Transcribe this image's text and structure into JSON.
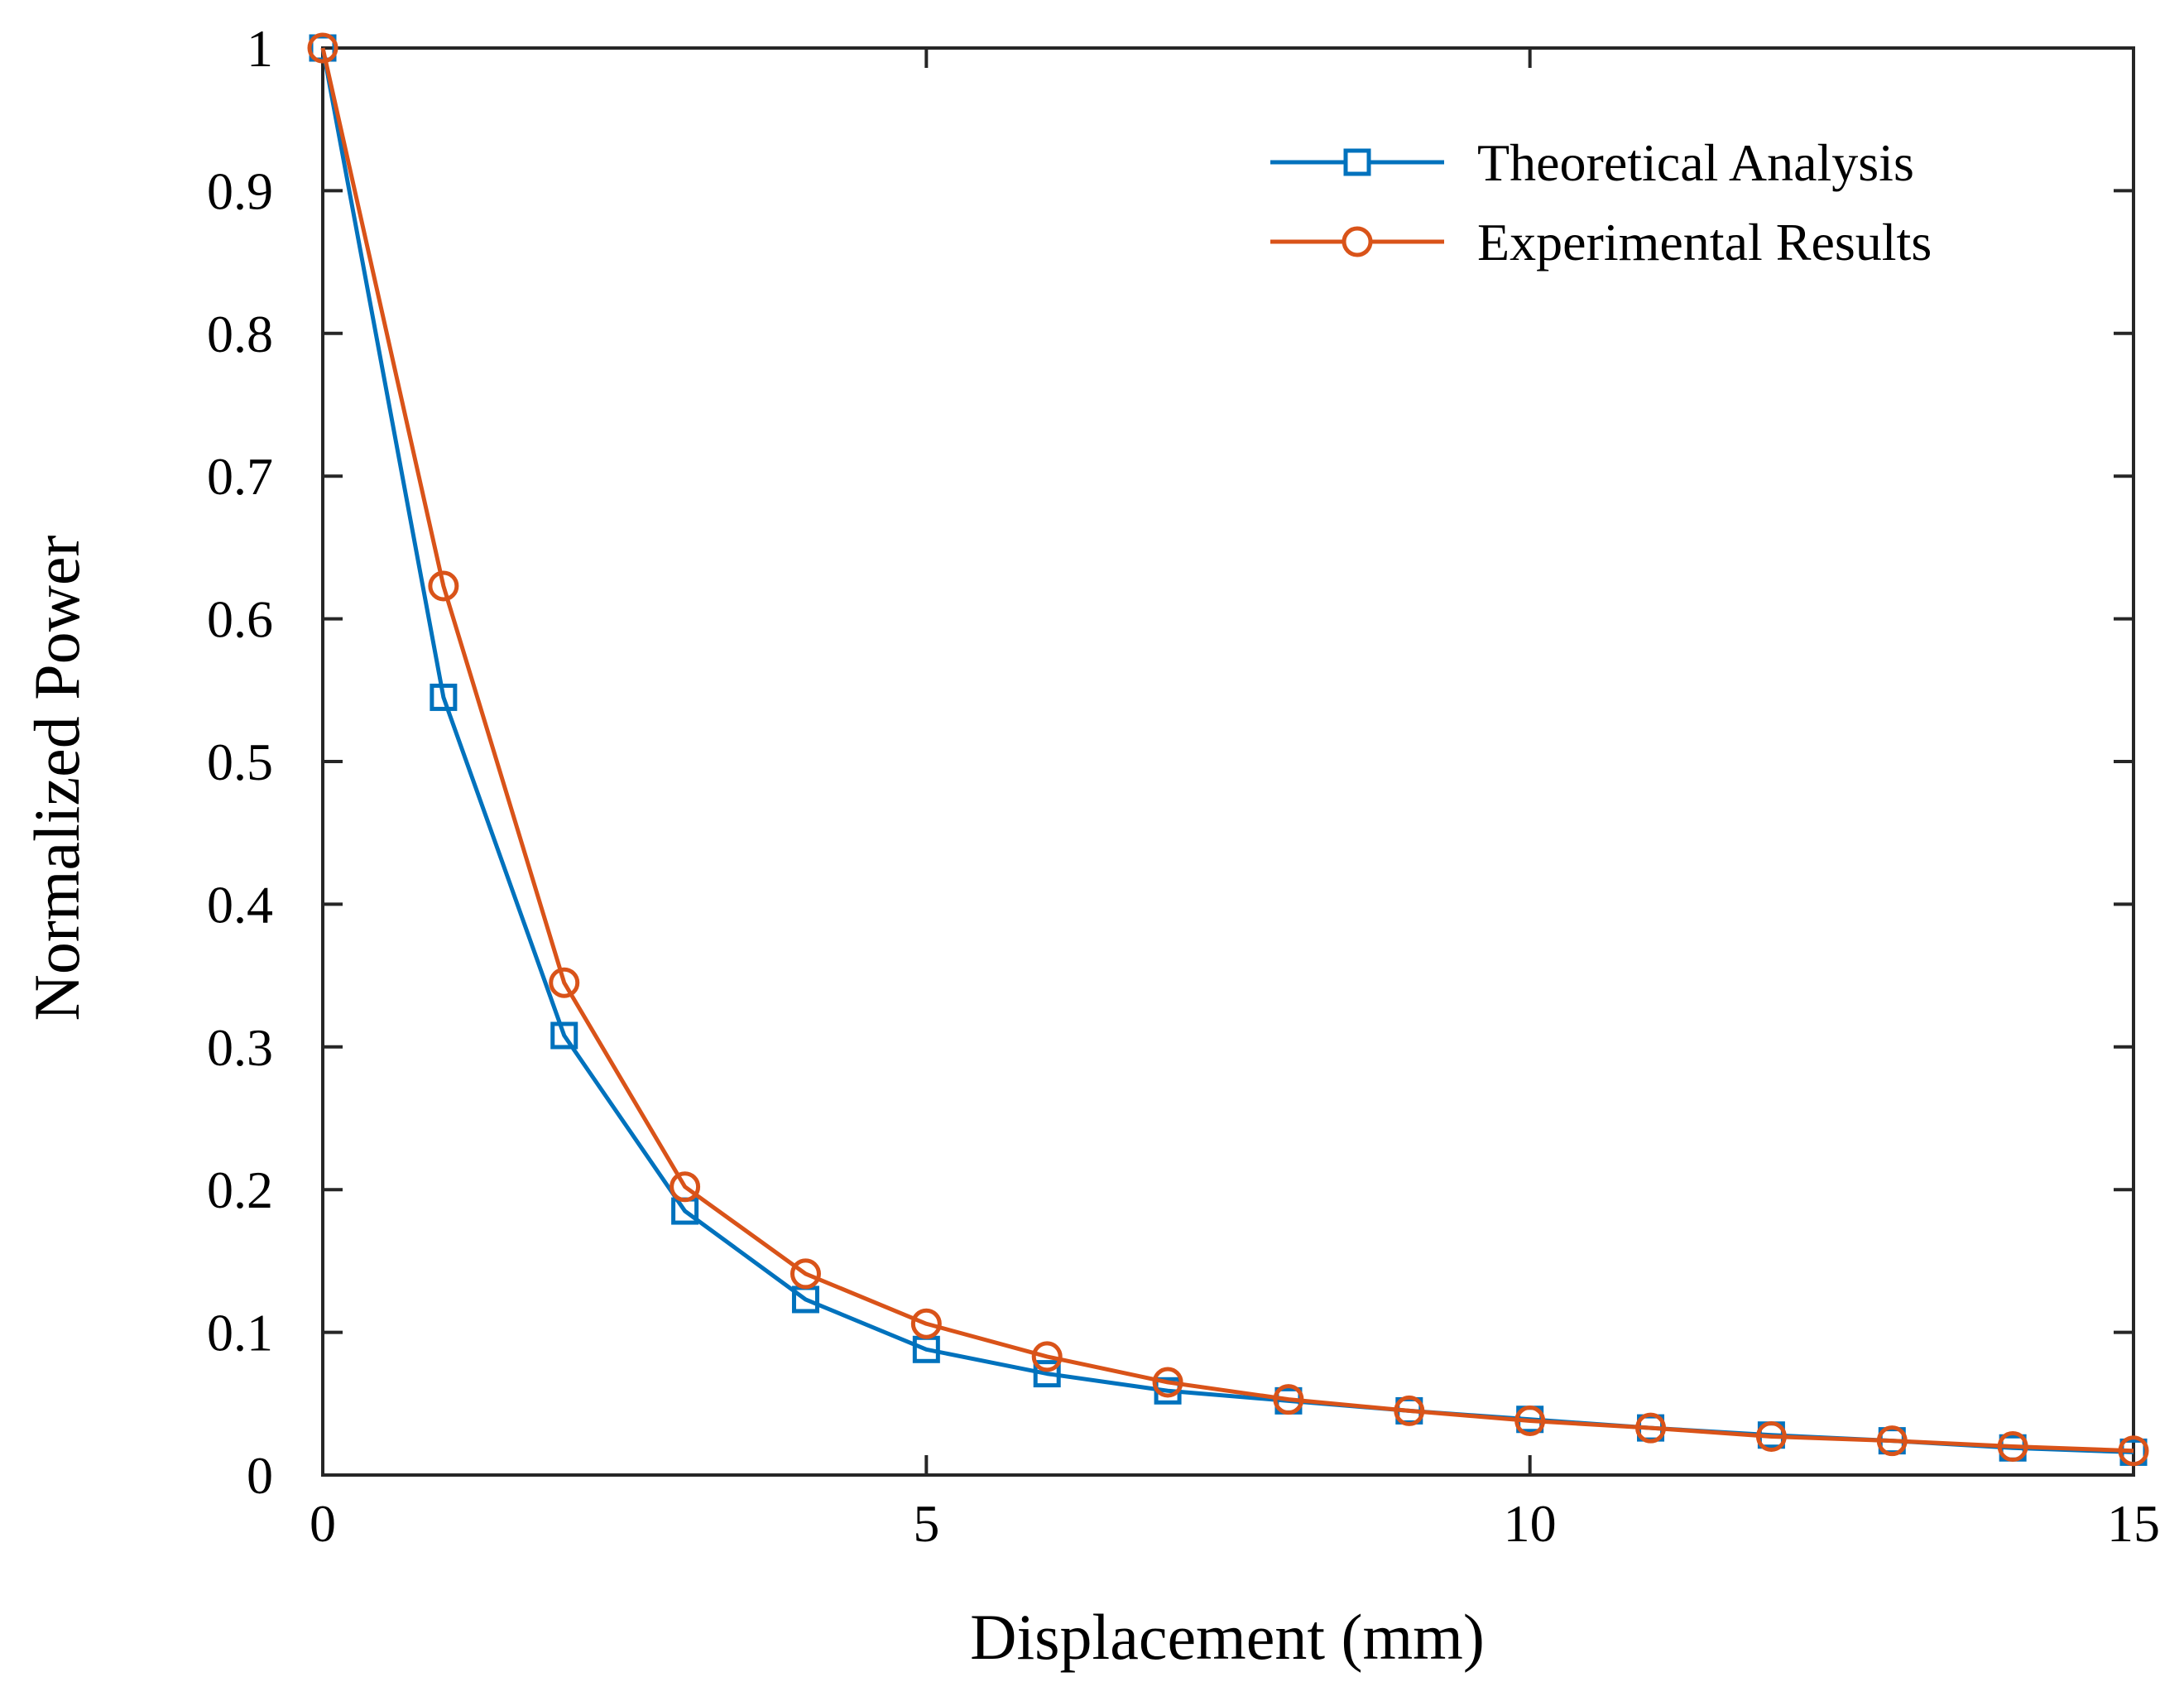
{
  "chart_data": {
    "type": "line",
    "title": "",
    "xlabel": "Displacement (mm)",
    "ylabel": "Normalized Power",
    "xlim": [
      0,
      15
    ],
    "ylim": [
      0,
      1
    ],
    "grid": false,
    "legend_position": "top-right",
    "x_ticks": [
      0,
      5,
      10,
      15
    ],
    "x_tick_labels": [
      "0",
      "5",
      "10",
      "15"
    ],
    "y_ticks": [
      0,
      0.1,
      0.2,
      0.3,
      0.4,
      0.5,
      0.6,
      0.7,
      0.8,
      0.9,
      1
    ],
    "y_tick_labels": [
      "0",
      "0.1",
      "0.2",
      "0.3",
      "0.4",
      "0.5",
      "0.6",
      "0.7",
      "0.8",
      "0.9",
      "1"
    ],
    "x": [
      0,
      1,
      2,
      3,
      4,
      5,
      6,
      7,
      8,
      9,
      10,
      11,
      12,
      13,
      14,
      15
    ],
    "series": [
      {
        "name": "Theoretical Analysis",
        "color": "#0072BD",
        "marker": "square",
        "values": [
          1.0,
          0.545,
          0.308,
          0.185,
          0.123,
          0.088,
          0.071,
          0.059,
          0.052,
          0.045,
          0.039,
          0.033,
          0.028,
          0.024,
          0.019,
          0.016
        ]
      },
      {
        "name": "Experimental Results",
        "color": "#D95319",
        "marker": "circle",
        "values": [
          1.0,
          0.623,
          0.345,
          0.202,
          0.141,
          0.106,
          0.083,
          0.065,
          0.053,
          0.045,
          0.038,
          0.033,
          0.027,
          0.024,
          0.02,
          0.017
        ]
      }
    ]
  }
}
